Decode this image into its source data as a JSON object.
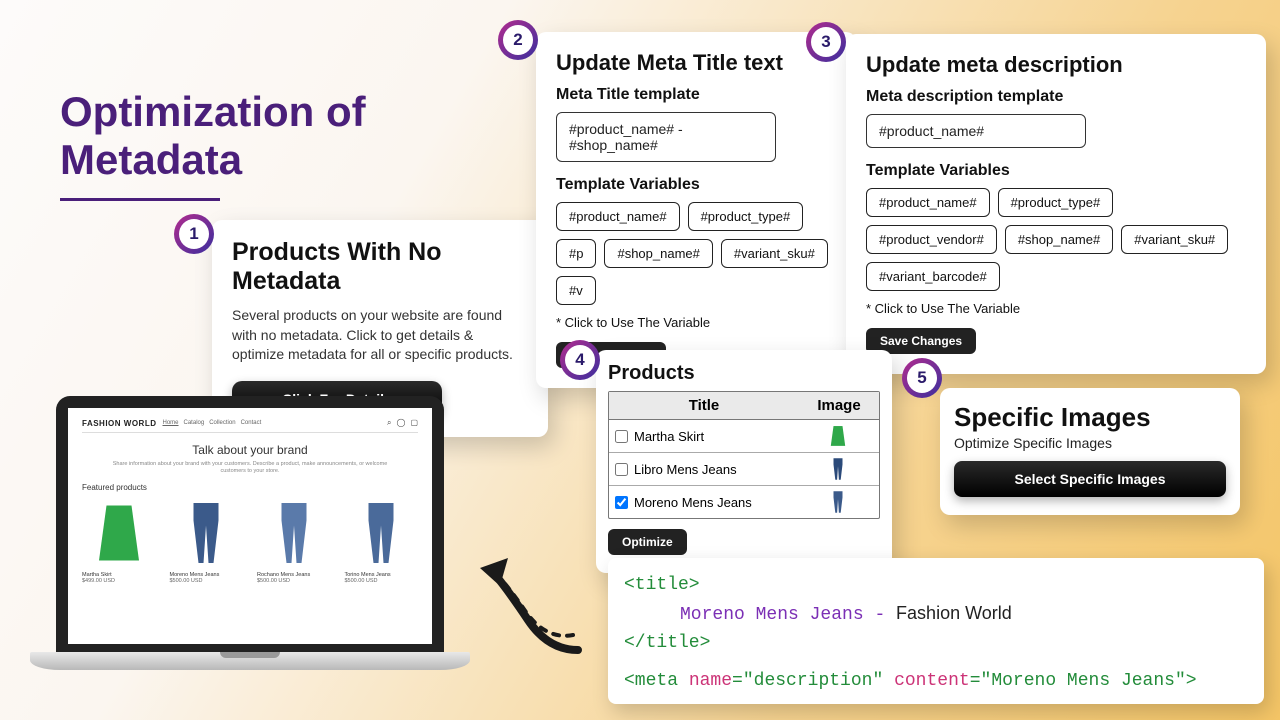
{
  "title": "Optimization of\nMetadata",
  "card1": {
    "badge": "1",
    "title": "Products With No Metadata",
    "desc": "Several products on your website are found with no metadata. Click to get details & optimize metadata for all or specific products.",
    "cta": "Click For Details"
  },
  "card2": {
    "badge": "2",
    "title": "Update Meta Title text",
    "subtitle": "Meta Title template",
    "input_value": "#product_name# - #shop_name#",
    "vars_label": "Template Variables",
    "vars": [
      "#product_name#",
      "#product_type#",
      "#p",
      "#shop_name#",
      "#variant_sku#",
      "#v"
    ],
    "note": "* Click to Use The Variable",
    "save": "Save Changes"
  },
  "card3": {
    "badge": "3",
    "title": "Update meta description",
    "subtitle": "Meta description template",
    "input_value": "#product_name#",
    "vars_label": "Template Variables",
    "vars": [
      "#product_name#",
      "#product_type#",
      "#product_vendor#",
      "#shop_name#",
      "#variant_sku#",
      "#variant_barcode#"
    ],
    "note": "* Click to Use The Variable",
    "save": "Save Changes"
  },
  "card4": {
    "badge": "4",
    "title": "Products",
    "col_title": "Title",
    "col_image": "Image",
    "rows": [
      {
        "checked": false,
        "title": "Martha Skirt",
        "color": "#2fa84a",
        "type": "skirt"
      },
      {
        "checked": false,
        "title": "Libro Mens Jeans",
        "color": "#2b4a7a",
        "type": "jeans"
      },
      {
        "checked": true,
        "title": "Moreno Mens Jeans",
        "color": "#3b5a8a",
        "type": "jeans"
      }
    ],
    "optimize": "Optimize"
  },
  "card5": {
    "badge": "5",
    "title": "Specific Images",
    "subtitle": "Optimize Specific Images",
    "cta": "Select Specific Images"
  },
  "code": {
    "title_open": "<title>",
    "title_close": "</title>",
    "product": "Moreno Mens Jeans",
    "sep": " - ",
    "shop": "Fashion World",
    "meta_open": "<meta ",
    "attr_name": "name",
    "eq": "=",
    "desc_val": "\"description\"",
    "attr_content": " content",
    "cont_val": "\"Moreno Mens Jeans\"",
    "meta_close": ">"
  },
  "laptop": {
    "brand": "FASHION WORLD",
    "links": [
      "Home",
      "Catalog",
      "Collection",
      "Contact"
    ],
    "hero_title": "Talk about your brand",
    "hero_sub": "Share information about your brand with your customers. Describe a product, make announcements, or welcome customers to your store.",
    "section": "Featured products",
    "items": [
      {
        "name": "Martha Skirt",
        "price": "$499.00 USD",
        "type": "skirt",
        "color": "#2fa84a"
      },
      {
        "name": "Moreno Mens Jeans",
        "price": "$500.00 USD",
        "type": "jeans",
        "color": "#3b5a8a"
      },
      {
        "name": "Rochano Mens Jeans",
        "price": "$500.00 USD",
        "type": "jeans",
        "color": "#5a7aaa"
      },
      {
        "name": "Torino Mens Jeans",
        "price": "$500.00 USD",
        "type": "jeans",
        "color": "#4a6a9a"
      }
    ]
  },
  "colors": {
    "title": "#4a1f7a",
    "badge_grad_a": "#b22c8e",
    "badge_grad_b": "#3b2f9e"
  }
}
